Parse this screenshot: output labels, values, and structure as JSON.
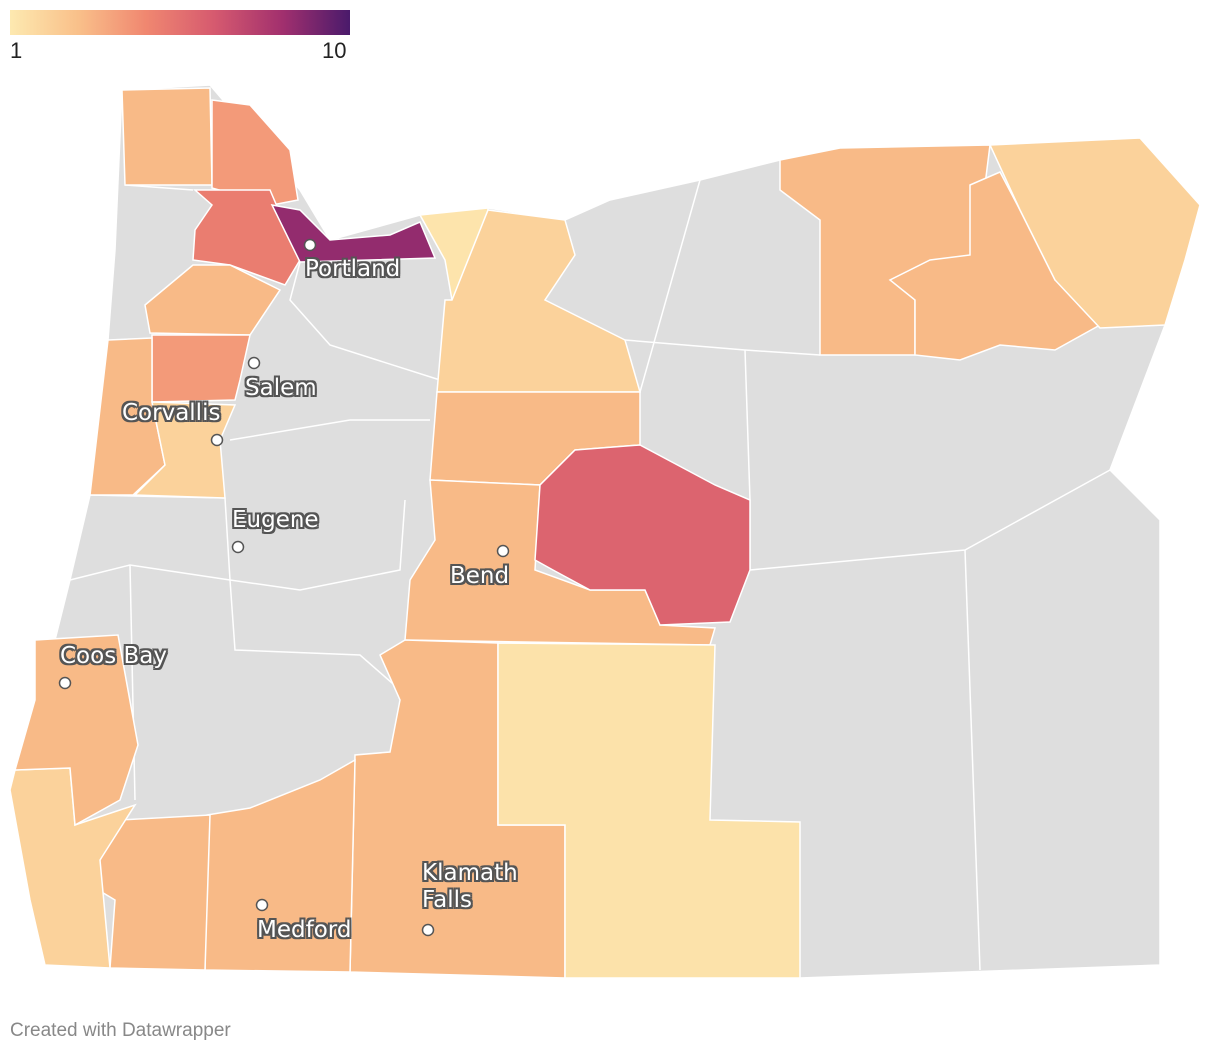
{
  "legend": {
    "domain": [
      1,
      10
    ],
    "ticks": [
      1,
      10
    ],
    "colors": [
      "#fde9b0",
      "#f9c08a",
      "#f08770",
      "#d65a6f",
      "#a2306e",
      "#4a1a6b"
    ]
  },
  "regions": {
    "values": [
      3,
      4,
      5,
      8.5,
      1.2,
      3,
      4,
      3,
      2,
      2,
      3,
      3,
      6,
      3,
      1.3,
      3,
      3,
      2,
      3,
      3,
      3,
      2
    ]
  },
  "cities": [
    {
      "label": "Portland"
    },
    {
      "label": "Salem"
    },
    {
      "label": "Corvallis"
    },
    {
      "label": "Eugene"
    },
    {
      "label": "Bend"
    },
    {
      "label": "Coos Bay"
    },
    {
      "label": "Medford"
    },
    {
      "label": "Klamath Falls"
    }
  ],
  "footer": "Created with Datawrapper"
}
